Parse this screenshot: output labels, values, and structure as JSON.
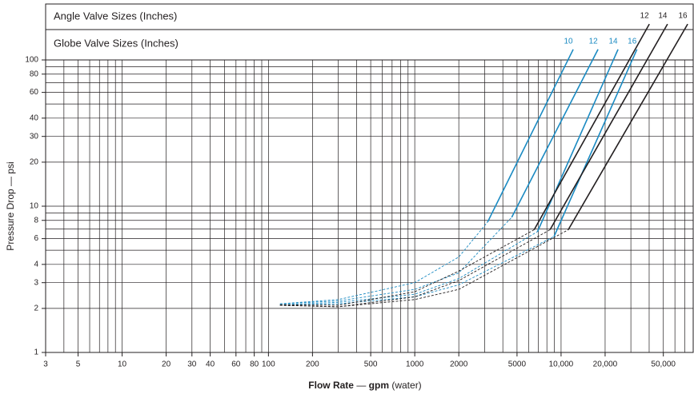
{
  "chart_data": {
    "type": "line",
    "header_rows": [
      {
        "text": "Angle Valve Sizes (Inches)",
        "color": "#231f20"
      },
      {
        "text": "Globe Valve Sizes (Inches)",
        "color": "#1a8ac2"
      }
    ],
    "ylabel": "Pressure Drop — psi",
    "xlabel": [
      "Flow Rate",
      "—",
      "gpm",
      "(water)"
    ],
    "log_x": true,
    "log_y": true,
    "grid": true,
    "xlim": [
      3,
      80000
    ],
    "ylim": [
      1,
      100
    ],
    "xticks": [
      3,
      5,
      10,
      20,
      30,
      40,
      60,
      80,
      100,
      200,
      500,
      1000,
      2000,
      5000,
      {
        "value": 10000,
        "label": "10,000"
      },
      {
        "value": 20000,
        "label": "20,000"
      },
      {
        "value": 50000,
        "label": "50,000"
      }
    ],
    "xgrid": [
      3,
      4,
      5,
      6,
      7,
      8,
      9,
      10,
      20,
      30,
      40,
      50,
      60,
      70,
      80,
      90,
      100,
      200,
      300,
      400,
      500,
      600,
      700,
      800,
      900,
      1000,
      2000,
      3000,
      4000,
      5000,
      6000,
      7000,
      8000,
      9000,
      10000,
      20000,
      30000,
      40000,
      50000,
      60000,
      70000
    ],
    "yticks": [
      1,
      2,
      3,
      4,
      6,
      8,
      10,
      20,
      30,
      40,
      60,
      80,
      100
    ],
    "ygrid": [
      2,
      3,
      4,
      5,
      6,
      7,
      8,
      9,
      10,
      20,
      30,
      40,
      50,
      60,
      70,
      80,
      90
    ],
    "series": [
      {
        "color": "#1a8ac2",
        "line_style": "dashed",
        "x": [
          120,
          300,
          1000,
          2000,
          3150
        ],
        "values": [
          2.15,
          2.3,
          3.0,
          4.5,
          7.8
        ]
      },
      {
        "color": "#1a8ac2",
        "line_style": "dashed",
        "x": [
          120,
          300,
          1000,
          2000,
          4600
        ],
        "values": [
          2.15,
          2.25,
          2.7,
          3.5,
          8.4
        ]
      },
      {
        "color": "#1a8ac2",
        "line_style": "dashed",
        "x": [
          120,
          300,
          1000,
          2000,
          6900
        ],
        "values": [
          2.12,
          2.2,
          2.5,
          3.2,
          6.7
        ]
      },
      {
        "color": "#1a8ac2",
        "line_style": "dashed",
        "x": [
          120,
          300,
          1000,
          2000,
          8950
        ],
        "values": [
          2.1,
          2.15,
          2.4,
          2.9,
          6.2
        ]
      },
      {
        "color": "#231f20",
        "line_style": "dashed",
        "x": [
          120,
          300,
          1000,
          2000,
          6550
        ],
        "values": [
          2.12,
          2.1,
          2.6,
          3.6,
          6.9
        ]
      },
      {
        "color": "#231f20",
        "line_style": "dashed",
        "x": [
          120,
          300,
          1000,
          2000,
          8400
        ],
        "values": [
          2.1,
          2.05,
          2.4,
          3.1,
          6.9
        ]
      },
      {
        "color": "#231f20",
        "line_style": "dashed",
        "x": [
          120,
          300,
          1000,
          2000,
          11200
        ],
        "values": [
          2.1,
          2.05,
          2.3,
          2.7,
          6.9
        ]
      },
      {
        "name": "10",
        "color": "#1a8ac2",
        "line_style": "solid",
        "x": [
          3150,
          12100
        ],
        "values": [
          7.8,
          118
        ]
      },
      {
        "name": "12",
        "color": "#1a8ac2",
        "line_style": "solid",
        "x": [
          4600,
          17900
        ],
        "values": [
          8.4,
          118
        ]
      },
      {
        "name": "14",
        "color": "#1a8ac2",
        "line_style": "solid",
        "x": [
          6900,
          24500
        ],
        "values": [
          6.7,
          118
        ]
      },
      {
        "name": "16",
        "color": "#1a8ac2",
        "line_style": "solid",
        "x": [
          8950,
          33000
        ],
        "values": [
          6.2,
          118
        ]
      },
      {
        "name": "12",
        "color": "#231f20",
        "line_style": "solid",
        "x": [
          6550,
          40100
        ],
        "values": [
          6.9,
          176
        ]
      },
      {
        "name": "14",
        "color": "#231f20",
        "line_style": "solid",
        "x": [
          8400,
          53400
        ],
        "values": [
          6.9,
          176
        ]
      },
      {
        "name": "16",
        "color": "#231f20",
        "line_style": "solid",
        "x": [
          11200,
          73300
        ],
        "values": [
          6.9,
          176
        ]
      }
    ]
  }
}
